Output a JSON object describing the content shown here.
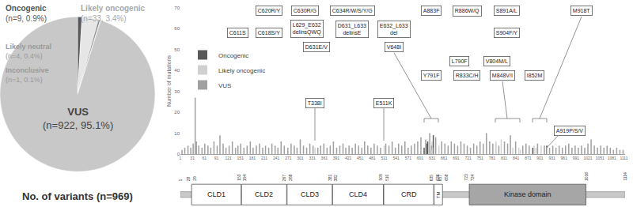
{
  "chart_data": [
    {
      "type": "pie",
      "title": "No. of variants (n=969)",
      "categories": [
        "Oncogenic",
        "Likely oncogenic",
        "Likely neutral",
        "Inconclusive",
        "VUS"
      ],
      "values": [
        9,
        33,
        4,
        1,
        922
      ],
      "value_labels": [
        "(n=9, 0.9%)",
        "(n=33, 3.4%)",
        "(n=4, 0.4%)",
        "(n=1, 0.1%)",
        "(n=922, 95.1%)"
      ],
      "colors": [
        "#595959",
        "#e6e6e6",
        "#8c8c8c",
        "#a6a6a6",
        "#c8c8c8"
      ]
    },
    {
      "type": "bar",
      "y_label": "Number of mutations",
      "xlim": [
        1,
        1114
      ],
      "xticks": [
        1,
        31,
        61,
        91,
        121,
        151,
        181,
        211,
        241,
        271,
        301,
        331,
        361,
        391,
        421,
        451,
        481,
        511,
        541,
        571,
        601,
        631,
        661,
        691,
        721,
        751,
        781,
        811,
        841,
        871,
        901,
        931,
        961,
        991,
        1021,
        1051,
        1081,
        1111
      ],
      "ylim": [
        0,
        70
      ],
      "yticks": [
        0,
        10,
        20,
        30,
        40,
        50,
        60,
        70
      ],
      "grid": false,
      "legend": "upper left",
      "series": [
        {
          "name": "Oncogenic",
          "color": "#595959",
          "x": [
            611,
            618,
            620,
            630,
            634,
            883,
            918
          ],
          "values": [
            3,
            5,
            6,
            4,
            9,
            3,
            4
          ]
        },
        {
          "name": "Likely oncogenic",
          "color": "#d0d0d0",
          "x": [
            338,
            511,
            629,
            631,
            632,
            648,
            790,
            791,
            804,
            833,
            848,
            852,
            886,
            891,
            904,
            919
          ],
          "values": [
            3,
            4,
            2,
            6,
            3,
            4,
            5,
            6,
            7,
            3,
            3,
            2,
            4,
            3,
            4,
            3
          ]
        },
        {
          "name": "VUS",
          "color": "#a0a0a0",
          "x": [
            5,
            12,
            20,
            27,
            33,
            38,
            41,
            47,
            55,
            62,
            70,
            77,
            85,
            93,
            100,
            108,
            115,
            123,
            131,
            139,
            145,
            152,
            160,
            168,
            176,
            183,
            191,
            199,
            207,
            214,
            222,
            230,
            238,
            245,
            253,
            261,
            270,
            278,
            286,
            293,
            301,
            309,
            317,
            325,
            333,
            345,
            352,
            360,
            368,
            376,
            384,
            392,
            400,
            408,
            415,
            423,
            431,
            439,
            447,
            455,
            462,
            470,
            478,
            486,
            494,
            502,
            515,
            523,
            531,
            539,
            547,
            555,
            563,
            571,
            579,
            587,
            595,
            603,
            615,
            625,
            640,
            655,
            663,
            671,
            679,
            687,
            695,
            703,
            711,
            719,
            727,
            735,
            743,
            751,
            759,
            767,
            775,
            783,
            798,
            812,
            820,
            827,
            840,
            858,
            866,
            874,
            895,
            912,
            925,
            933,
            941,
            949,
            957,
            965,
            973,
            981,
            989,
            997,
            1005,
            1013,
            1021,
            1029,
            1037,
            1045,
            1053,
            1061,
            1069,
            1077,
            1085,
            1093,
            1101,
            1109
          ],
          "values": [
            2,
            3,
            4,
            3,
            5,
            27,
            6,
            4,
            3,
            5,
            4,
            3,
            6,
            4,
            9,
            5,
            3,
            4,
            6,
            3,
            4,
            5,
            3,
            4,
            6,
            3,
            4,
            5,
            3,
            4,
            3,
            5,
            4,
            3,
            6,
            4,
            3,
            5,
            4,
            3,
            7,
            4,
            3,
            5,
            4,
            3,
            4,
            5,
            3,
            4,
            6,
            3,
            4,
            5,
            3,
            4,
            3,
            5,
            4,
            3,
            6,
            4,
            3,
            5,
            4,
            3,
            5,
            4,
            6,
            3,
            5,
            4,
            6,
            3,
            4,
            5,
            6,
            8,
            7,
            10,
            8,
            6,
            5,
            4,
            6,
            5,
            4,
            6,
            5,
            4,
            3,
            5,
            4,
            6,
            5,
            10,
            6,
            5,
            4,
            6,
            5,
            9,
            6,
            4,
            5,
            4,
            5,
            4,
            3,
            4,
            3,
            4,
            3,
            4,
            5,
            3,
            4,
            3,
            4,
            3,
            5,
            7,
            4,
            3,
            4,
            3,
            4,
            3,
            2,
            3,
            2,
            2
          ]
        }
      ],
      "annotations": [
        "C620R/Y",
        "C630R/G",
        "C634R/W/S/Y/G",
        "A883F",
        "R886W/Q",
        "S891A/L",
        "M918T",
        "C611S",
        "C618S/Y",
        "L629_E632 delinsQWQ",
        "D631_L633 delinsE",
        "E632_L633 del",
        "D631E/V",
        "V648I",
        "S904F/Y",
        "L790F",
        "V804M/L",
        "Y791F",
        "R833C/H",
        "M848V/I",
        "I852M",
        "T338I",
        "E511K",
        "A919P/S/V"
      ]
    }
  ],
  "protein_diagram": {
    "boundaries": [
      1,
      28,
      29,
      153,
      154,
      267,
      268,
      381,
      382,
      509,
      510,
      635,
      636,
      657,
      658,
      723,
      724,
      1016,
      1114
    ],
    "domains": [
      {
        "label": "CLD1",
        "start": 29,
        "end": 153,
        "color": "#ffffff"
      },
      {
        "label": "CLD2",
        "start": 154,
        "end": 267,
        "color": "#ffffff"
      },
      {
        "label": "CLD3",
        "start": 268,
        "end": 381,
        "color": "#ffffff"
      },
      {
        "label": "CLD4",
        "start": 382,
        "end": 509,
        "color": "#ffffff"
      },
      {
        "label": "CRD",
        "start": 510,
        "end": 635,
        "color": "#ffffff"
      },
      {
        "label": "TM",
        "start": 636,
        "end": 657,
        "color": "#ffffff"
      },
      {
        "label": "Kinase domain",
        "start": 724,
        "end": 1016,
        "color": "#a6a6a6"
      }
    ]
  }
}
